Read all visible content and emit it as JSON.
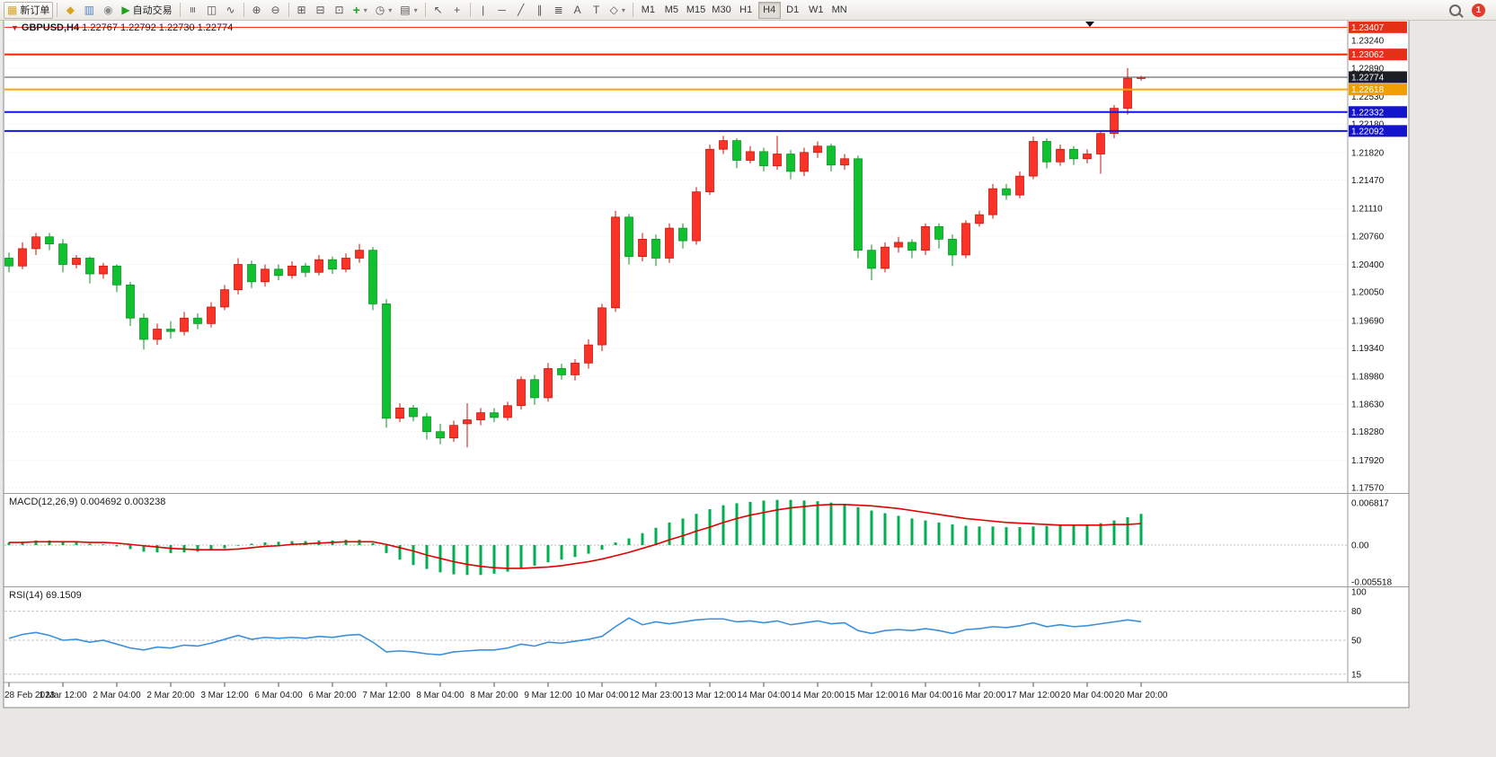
{
  "toolbar": {
    "new_order": {
      "label": "新订单"
    },
    "auto_trading": {
      "label": "自动交易"
    },
    "timeframes": [
      "M1",
      "M5",
      "M15",
      "M30",
      "H1",
      "H4",
      "D1",
      "W1",
      "MN"
    ],
    "active_timeframe": "H4",
    "notification_count": "1",
    "glyphs": {
      "new_order": "▦",
      "new_chart": "◆",
      "profiles": "▥",
      "data_window": "◉",
      "auto_play": "▶",
      "bar_chart": "≡",
      "candle_chart": "◫",
      "line_chart": "∿",
      "zoom_in": "⊕",
      "zoom_out": "⊖",
      "tile": "⊞",
      "arrange": "⊟",
      "shift": "⊡",
      "add_indicator": "+",
      "clock": "◷",
      "template": "▤",
      "cursor": "↖",
      "crosshair": "+",
      "vline": "|",
      "hline": "─",
      "tline": "╱",
      "channel": "∥",
      "fibonacci": "≣",
      "text": "A",
      "label_tool": "T",
      "shapes": "◇",
      "dropdown": "▾",
      "down_triangle": "▼"
    }
  },
  "quote": {
    "direction": "▼",
    "symbol": "GBPUSD,H4",
    "ohlc": "1.22767 1.22792 1.22730 1.22774"
  },
  "chart_data": {
    "type": "candlestick",
    "symbol": "GBPUSD",
    "timeframe": "H4",
    "current_quote": {
      "open": "1.22767",
      "high": "1.22792",
      "low": "1.22730",
      "close": "1.22774"
    },
    "style": {
      "up_fill": "#f93328",
      "up_stroke": "#c81408",
      "down_fill": "#0fc12f",
      "down_stroke": "#089421",
      "macd_histogram": "#00b050",
      "macd_signal": "#e00000",
      "rsi_line": "#3b8fdd",
      "grid": "#e4e4e4"
    },
    "y_axis_ticks": [
      "1.23240",
      "1.22890",
      "1.22530",
      "1.22180",
      "1.21820",
      "1.21470",
      "1.21110",
      "1.20760",
      "1.20400",
      "1.20050",
      "1.19690",
      "1.19340",
      "1.18980",
      "1.18630",
      "1.18280",
      "1.17920",
      "1.17570"
    ],
    "levels": [
      {
        "price": 1.23407,
        "label": "1.23407",
        "color": "#ff1e00",
        "width": 1,
        "badge": "#e53018"
      },
      {
        "price": 1.23062,
        "label": "1.23062",
        "color": "#ff1e00",
        "width": 2,
        "badge": "#e53018"
      },
      {
        "price": 1.22774,
        "label": "1.22774",
        "color": "#4a4a4a",
        "width": 1,
        "badge": "#1d1d26",
        "current": true
      },
      {
        "price": 1.22618,
        "label": "1.22618",
        "color": "#f5a800",
        "width": 2,
        "badge": "#efa000"
      },
      {
        "price": 1.22332,
        "label": "1.22332",
        "color": "#1414e8",
        "width": 2,
        "badge": "#1414cc"
      },
      {
        "price": 1.22092,
        "label": "1.22092",
        "color": "#1414e8",
        "width": 2,
        "badge": "#1414cc"
      }
    ],
    "time_labels": [
      "28 Feb 2023",
      "1 Mar 12:00",
      "2 Mar 04:00",
      "2 Mar 20:00",
      "3 Mar 12:00",
      "6 Mar 04:00",
      "6 Mar 20:00",
      "7 Mar 12:00",
      "8 Mar 04:00",
      "8 Mar 20:00",
      "9 Mar 12:00",
      "10 Mar 04:00",
      "12 Mar 23:00",
      "13 Mar 12:00",
      "14 Mar 04:00",
      "14 Mar 20:00",
      "15 Mar 12:00",
      "16 Mar 04:00",
      "16 Mar 20:00",
      "17 Mar 12:00",
      "20 Mar 04:00",
      "20 Mar 20:00"
    ],
    "candles": [
      [
        1.2048,
        1.2055,
        1.203,
        1.2038
      ],
      [
        1.2038,
        1.2068,
        1.2034,
        1.206
      ],
      [
        1.206,
        1.208,
        1.2052,
        1.2075
      ],
      [
        1.2075,
        1.208,
        1.2058,
        1.2066
      ],
      [
        1.2066,
        1.2072,
        1.203,
        1.204
      ],
      [
        1.204,
        1.2052,
        1.2035,
        1.2048
      ],
      [
        1.2048,
        1.205,
        1.2016,
        1.2028
      ],
      [
        1.2028,
        1.2042,
        1.2022,
        1.2038
      ],
      [
        1.2038,
        1.204,
        1.2005,
        1.2014
      ],
      [
        1.2014,
        1.2018,
        1.1962,
        1.1972
      ],
      [
        1.1972,
        1.1978,
        1.1932,
        1.1945
      ],
      [
        1.1945,
        1.1965,
        1.1938,
        1.1958
      ],
      [
        1.1958,
        1.1968,
        1.1946,
        1.1955
      ],
      [
        1.1955,
        1.198,
        1.195,
        1.1972
      ],
      [
        1.1972,
        1.1978,
        1.1958,
        1.1965
      ],
      [
        1.1965,
        1.1992,
        1.196,
        1.1986
      ],
      [
        1.1986,
        1.2014,
        1.1982,
        1.2008
      ],
      [
        1.2008,
        1.2048,
        1.2002,
        1.204
      ],
      [
        1.204,
        1.2045,
        1.201,
        1.2018
      ],
      [
        1.2018,
        1.204,
        1.2012,
        1.2034
      ],
      [
        1.2034,
        1.204,
        1.202,
        1.2026
      ],
      [
        1.2026,
        1.2044,
        1.2022,
        1.2038
      ],
      [
        1.2038,
        1.2042,
        1.2024,
        1.203
      ],
      [
        1.203,
        1.2052,
        1.2026,
        1.2046
      ],
      [
        1.2046,
        1.205,
        1.2028,
        1.2034
      ],
      [
        1.2034,
        1.2054,
        1.203,
        1.2048
      ],
      [
        1.2048,
        1.2066,
        1.2042,
        1.2058
      ],
      [
        1.2058,
        1.2062,
        1.1982,
        1.199
      ],
      [
        1.199,
        1.1996,
        1.1833,
        1.1845
      ],
      [
        1.1845,
        1.1864,
        1.184,
        1.1858
      ],
      [
        1.1858,
        1.1862,
        1.1841,
        1.1847
      ],
      [
        1.1847,
        1.1852,
        1.1818,
        1.1828
      ],
      [
        1.1828,
        1.1838,
        1.1812,
        1.182
      ],
      [
        1.182,
        1.1842,
        1.1815,
        1.1836
      ],
      [
        1.1838,
        1.1864,
        1.1808,
        1.1843
      ],
      [
        1.1843,
        1.1858,
        1.1836,
        1.1852
      ],
      [
        1.1852,
        1.1858,
        1.184,
        1.1846
      ],
      [
        1.1846,
        1.1866,
        1.1842,
        1.1861
      ],
      [
        1.1861,
        1.1898,
        1.1856,
        1.1894
      ],
      [
        1.1894,
        1.19,
        1.1862,
        1.1871
      ],
      [
        1.1871,
        1.1915,
        1.1866,
        1.1908
      ],
      [
        1.1908,
        1.1914,
        1.1894,
        1.19
      ],
      [
        1.19,
        1.192,
        1.1893,
        1.1915
      ],
      [
        1.1915,
        1.1945,
        1.1908,
        1.1938
      ],
      [
        1.1938,
        1.199,
        1.193,
        1.1985
      ],
      [
        1.1985,
        1.2108,
        1.198,
        1.21
      ],
      [
        1.21,
        1.2104,
        1.204,
        1.205
      ],
      [
        1.205,
        1.208,
        1.2044,
        1.2072
      ],
      [
        1.2072,
        1.2078,
        1.2038,
        1.2048
      ],
      [
        1.2048,
        1.2092,
        1.2042,
        1.2086
      ],
      [
        1.2086,
        1.2092,
        1.206,
        1.207
      ],
      [
        1.207,
        1.2138,
        1.2065,
        1.2132
      ],
      [
        1.2132,
        1.2192,
        1.2128,
        1.2186
      ],
      [
        1.2186,
        1.2203,
        1.218,
        1.2197
      ],
      [
        1.2197,
        1.22,
        1.2162,
        1.2172
      ],
      [
        1.2172,
        1.219,
        1.2168,
        1.2183
      ],
      [
        1.2183,
        1.2188,
        1.2158,
        1.2165
      ],
      [
        1.2165,
        1.2203,
        1.216,
        1.218
      ],
      [
        1.218,
        1.2185,
        1.2148,
        1.2158
      ],
      [
        1.2158,
        1.2188,
        1.2152,
        1.2182
      ],
      [
        1.2182,
        1.2196,
        1.2175,
        1.219
      ],
      [
        1.219,
        1.2193,
        1.2158,
        1.2166
      ],
      [
        1.2166,
        1.218,
        1.216,
        1.2174
      ],
      [
        1.2174,
        1.2178,
        1.2048,
        1.2058
      ],
      [
        1.2058,
        1.2065,
        1.202,
        1.2035
      ],
      [
        1.2035,
        1.2068,
        1.203,
        1.2062
      ],
      [
        1.2062,
        1.2075,
        1.2055,
        1.2068
      ],
      [
        1.2068,
        1.2072,
        1.2048,
        1.2058
      ],
      [
        1.2058,
        1.2092,
        1.2052,
        1.2088
      ],
      [
        1.2088,
        1.2092,
        1.206,
        1.2072
      ],
      [
        1.2072,
        1.2078,
        1.2038,
        1.2052
      ],
      [
        1.2052,
        1.2096,
        1.2048,
        1.2092
      ],
      [
        1.2092,
        1.2108,
        1.2088,
        1.2103
      ],
      [
        1.2103,
        1.2142,
        1.2098,
        1.2136
      ],
      [
        1.2136,
        1.2142,
        1.2122,
        1.2128
      ],
      [
        1.2128,
        1.2158,
        1.2124,
        1.2152
      ],
      [
        1.2152,
        1.2202,
        1.2148,
        1.2196
      ],
      [
        1.2196,
        1.22,
        1.2162,
        1.217
      ],
      [
        1.217,
        1.2192,
        1.2165,
        1.2186
      ],
      [
        1.2186,
        1.219,
        1.2166,
        1.2174
      ],
      [
        1.2174,
        1.2186,
        1.2168,
        1.218
      ],
      [
        1.218,
        1.221,
        1.2155,
        1.2206
      ],
      [
        1.2206,
        1.2242,
        1.22,
        1.2238
      ],
      [
        1.2238,
        1.2289,
        1.223,
        1.2276
      ],
      [
        1.22767,
        1.22792,
        1.2273,
        1.22774
      ]
    ],
    "macd": {
      "label": "MACD(12,26,9)",
      "value": "0.004692",
      "signal_value": "0.003238",
      "axis_labels": [
        "0.006817",
        "0.00",
        "-0.005518"
      ],
      "values": [
        0.0004,
        0.0005,
        0.0007,
        0.0007,
        0.0005,
        0.0004,
        0.0002,
        0.0001,
        -0.0002,
        -0.0006,
        -0.001,
        -0.0011,
        -0.0012,
        -0.0011,
        -0.001,
        -0.0008,
        -0.0005,
        -0.0001,
        0.0002,
        0.0004,
        0.0005,
        0.0006,
        0.0006,
        0.0007,
        0.0007,
        0.0008,
        0.0008,
        0.0003,
        -0.0012,
        -0.0022,
        -0.003,
        -0.0036,
        -0.0041,
        -0.0044,
        -0.0045,
        -0.0045,
        -0.0043,
        -0.004,
        -0.0035,
        -0.0031,
        -0.0026,
        -0.0022,
        -0.0018,
        -0.0013,
        -0.0007,
        0.0004,
        0.001,
        0.0018,
        0.0026,
        0.0034,
        0.004,
        0.0047,
        0.0054,
        0.006,
        0.0063,
        0.0065,
        0.0067,
        0.0068,
        0.0068,
        0.0067,
        0.0066,
        0.0064,
        0.0062,
        0.0057,
        0.0052,
        0.0048,
        0.0044,
        0.004,
        0.0037,
        0.0034,
        0.0031,
        0.0029,
        0.0028,
        0.0028,
        0.0027,
        0.0027,
        0.0028,
        0.0029,
        0.0029,
        0.003,
        0.0031,
        0.0033,
        0.0037,
        0.0042,
        0.004692
      ],
      "signal": [
        0.0004,
        0.0004,
        0.0005,
        0.0005,
        0.0005,
        0.0005,
        0.0004,
        0.0004,
        0.0003,
        0.0001,
        -0.0001,
        -0.0003,
        -0.0005,
        -0.0006,
        -0.0007,
        -0.0007,
        -0.0007,
        -0.0006,
        -0.0004,
        -0.0002,
        -0.0001,
        0.0001,
        0.0002,
        0.0003,
        0.0004,
        0.0005,
        0.0005,
        0.0005,
        0.0001,
        -0.0004,
        -0.0009,
        -0.0015,
        -0.002,
        -0.0025,
        -0.0029,
        -0.0032,
        -0.0034,
        -0.0035,
        -0.0035,
        -0.0034,
        -0.0033,
        -0.0031,
        -0.0028,
        -0.0025,
        -0.0021,
        -0.0016,
        -0.0011,
        -0.0005,
        0.0001,
        0.0008,
        0.0014,
        0.0021,
        0.0027,
        0.0034,
        0.004,
        0.0045,
        0.0049,
        0.0053,
        0.0056,
        0.0058,
        0.006,
        0.0061,
        0.0061,
        0.006,
        0.0059,
        0.0057,
        0.0055,
        0.0052,
        0.0049,
        0.0046,
        0.0043,
        0.004,
        0.0038,
        0.0036,
        0.0034,
        0.0033,
        0.0032,
        0.0031,
        0.003,
        0.003,
        0.003,
        0.003,
        0.0031,
        0.0031,
        0.003238
      ]
    },
    "rsi": {
      "label": "RSI(14)",
      "value": "69.1509",
      "axis_labels": [
        "100",
        "80",
        "50",
        "15"
      ],
      "level_lines": [
        80,
        50,
        15
      ],
      "values": [
        52,
        56,
        58,
        55,
        50,
        51,
        48,
        50,
        46,
        42,
        40,
        43,
        42,
        45,
        44,
        47,
        51,
        55,
        51,
        53,
        52,
        53,
        52,
        54,
        53,
        55,
        56,
        48,
        38,
        39,
        38,
        36,
        35,
        38,
        39,
        40,
        40,
        42,
        46,
        44,
        48,
        47,
        49,
        51,
        54,
        64,
        73,
        66,
        69,
        67,
        69,
        71,
        72,
        72,
        69,
        70,
        68,
        70,
        66,
        68,
        70,
        67,
        68,
        60,
        57,
        60,
        61,
        60,
        62,
        60,
        57,
        61,
        62,
        64,
        63,
        65,
        68,
        64,
        66,
        64,
        65,
        67,
        69,
        71,
        69.1509
      ]
    }
  }
}
